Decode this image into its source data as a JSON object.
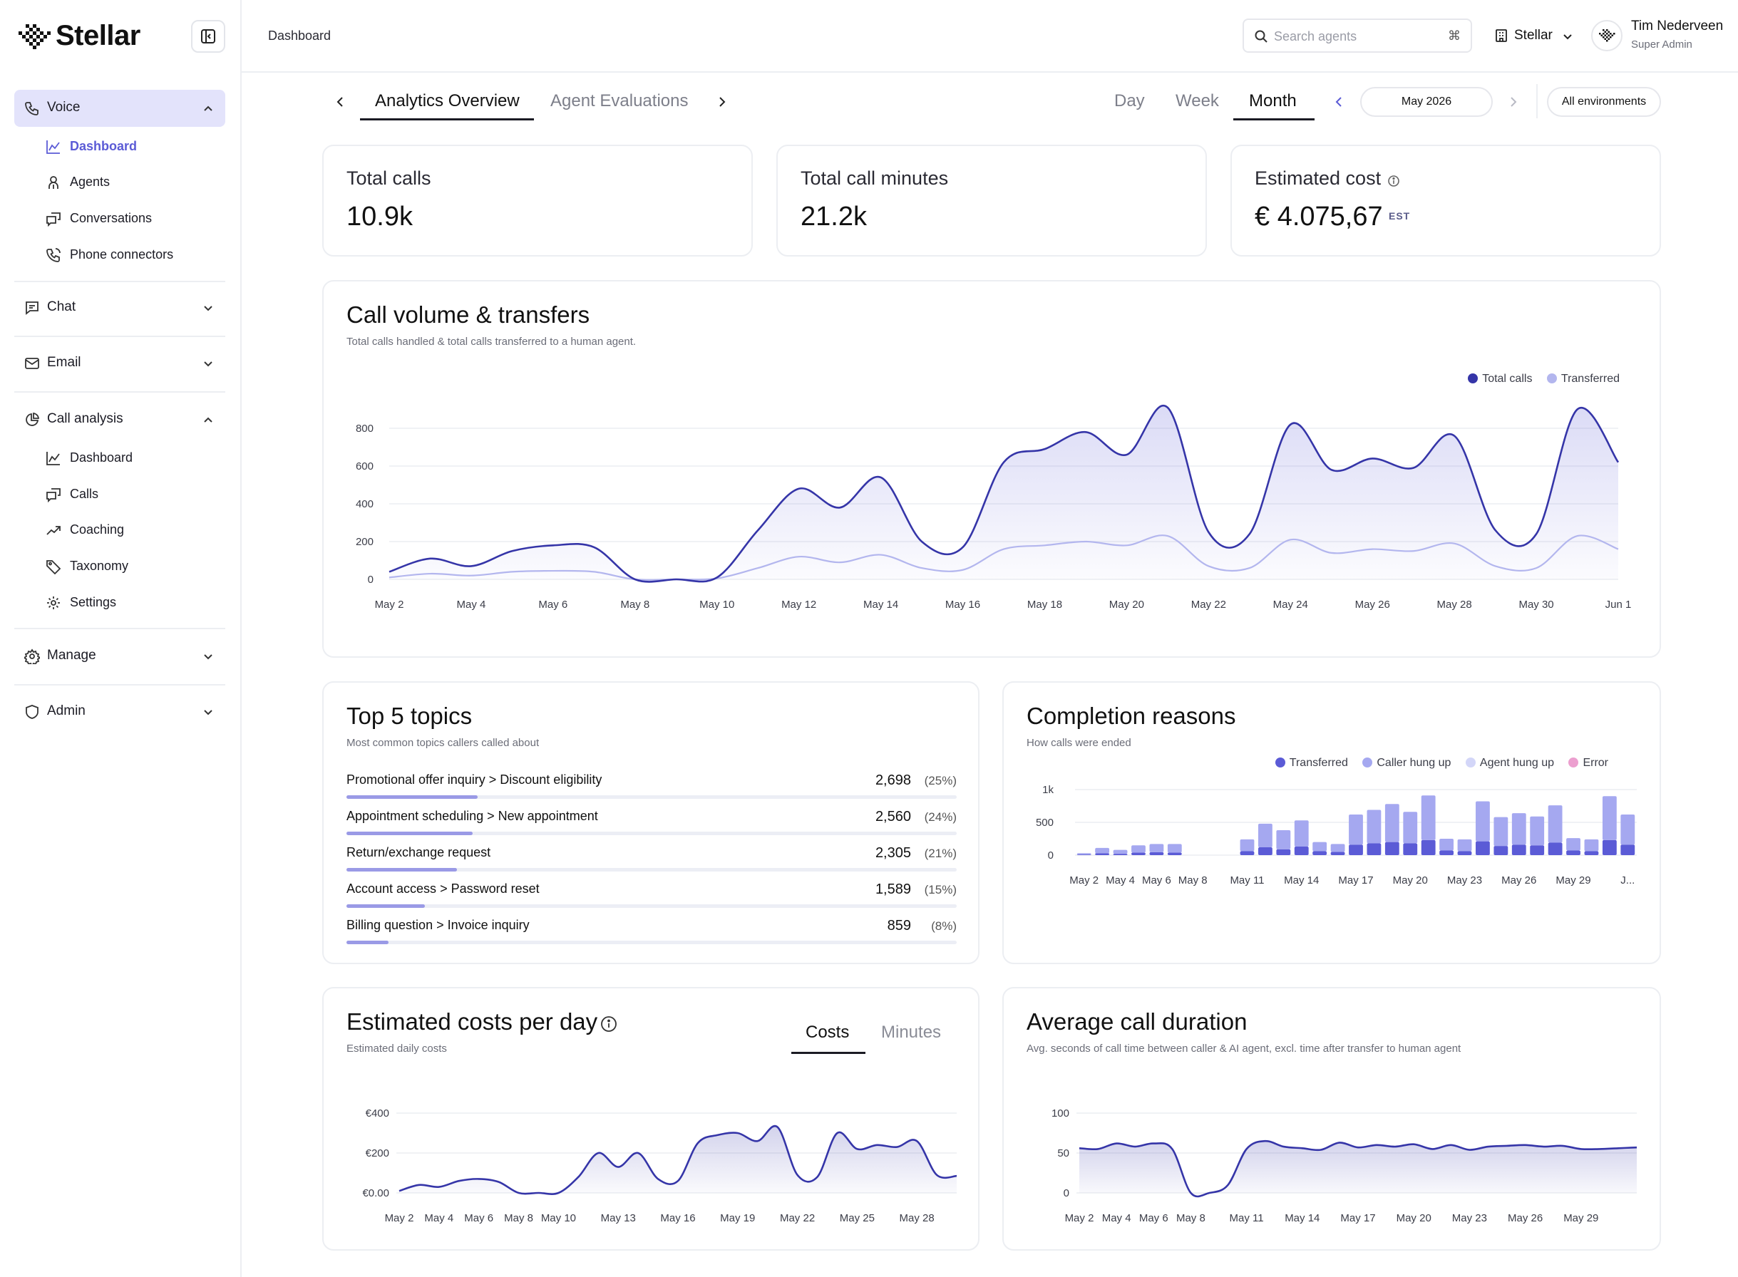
{
  "app": {
    "name": "Stellar"
  },
  "sidebar": {
    "sections": [
      {
        "label": "Voice",
        "expanded": true,
        "items": [
          "Dashboard",
          "Agents",
          "Conversations",
          "Phone connectors"
        ]
      },
      {
        "label": "Chat",
        "expanded": false
      },
      {
        "label": "Email",
        "expanded": false
      },
      {
        "label": "Call analysis",
        "expanded": true,
        "items": [
          "Dashboard",
          "Calls",
          "Coaching",
          "Taxonomy",
          "Settings"
        ]
      },
      {
        "label": "Manage",
        "expanded": false
      },
      {
        "label": "Admin",
        "expanded": false
      }
    ],
    "current_item": "Voice > Dashboard"
  },
  "header": {
    "breadcrumb": "Dashboard",
    "search_placeholder": "Search agents",
    "search_shortcut": "⌘",
    "org": "Stellar",
    "user": {
      "name": "Tim Nederveen",
      "role": "Super Admin"
    }
  },
  "tabs": {
    "items": [
      "Analytics Overview",
      "Agent Evaluations"
    ],
    "active": "Analytics Overview",
    "periods": [
      "Day",
      "Week",
      "Month"
    ],
    "active_period": "Month",
    "month": "May 2026",
    "environment": "All environments"
  },
  "kpis": [
    {
      "title": "Total calls",
      "value": "10.9k"
    },
    {
      "title": "Total call minutes",
      "value": "21.2k"
    },
    {
      "title": "Estimated cost",
      "value": "€ 4.075,67",
      "badge": "EST"
    }
  ],
  "colors": {
    "accent": "#5b5bd6",
    "primary_line": "#3535a8",
    "secondary_line": "#b3b6ee",
    "transferred": "#5b5bd6",
    "caller_hung_up": "#a5a8f0",
    "agent_hung_up": "#d3d6f8",
    "error": "#ec9fcf"
  },
  "call_volume": {
    "title": "Call volume & transfers",
    "subtitle": "Total calls handled & total calls transferred to a human agent.",
    "legend": [
      "Total calls",
      "Transferred"
    ]
  },
  "topics": {
    "title": "Top 5 topics",
    "subtitle": "Most common topics callers called about",
    "items": [
      {
        "label": "Promotional offer inquiry > Discount eligibility",
        "count": "2,698",
        "pct": "(25%)",
        "share": 0.25
      },
      {
        "label": "Appointment scheduling > New appointment",
        "count": "2,560",
        "pct": "(24%)",
        "share": 0.24
      },
      {
        "label": "Return/exchange request",
        "count": "2,305",
        "pct": "(21%)",
        "share": 0.21
      },
      {
        "label": "Account access > Password reset",
        "count": "1,589",
        "pct": "(15%)",
        "share": 0.15
      },
      {
        "label": "Billing question > Invoice inquiry",
        "count": "859",
        "pct": "(8%)",
        "share": 0.08
      }
    ]
  },
  "completion": {
    "title": "Completion reasons",
    "subtitle": "How calls were ended",
    "legend": [
      "Transferred",
      "Caller hung up",
      "Agent hung up",
      "Error"
    ]
  },
  "costs": {
    "title": "Estimated costs per day",
    "subtitle": "Estimated daily costs",
    "tabs": [
      "Costs",
      "Minutes"
    ],
    "active_tab": "Costs"
  },
  "duration": {
    "title": "Average call duration",
    "subtitle": "Avg. seconds of call time between caller & AI agent, excl. time after transfer to human agent"
  },
  "chart_data": [
    {
      "id": "call_volume",
      "type": "area",
      "x": [
        "May 2",
        "May 3",
        "May 4",
        "May 5",
        "May 6",
        "May 7",
        "May 8",
        "May 9",
        "May 10",
        "May 11",
        "May 12",
        "May 13",
        "May 14",
        "May 15",
        "May 16",
        "May 17",
        "May 18",
        "May 19",
        "May 20",
        "May 21",
        "May 22",
        "May 23",
        "May 24",
        "May 25",
        "May 26",
        "May 27",
        "May 28",
        "May 29",
        "May 30",
        "May 31",
        "Jun 1"
      ],
      "xticks": [
        "May 2",
        "May 4",
        "May 6",
        "May 8",
        "May 10",
        "May 12",
        "May 14",
        "May 16",
        "May 18",
        "May 20",
        "May 22",
        "May 24",
        "May 26",
        "May 28",
        "May 30",
        "Jun 1"
      ],
      "yticks": [
        0,
        200,
        400,
        600,
        800
      ],
      "ylim": [
        0,
        900
      ],
      "series": [
        {
          "name": "Total calls",
          "values": [
            40,
            110,
            70,
            150,
            180,
            170,
            0,
            0,
            10,
            260,
            480,
            380,
            540,
            200,
            170,
            620,
            690,
            780,
            660,
            910,
            250,
            240,
            820,
            580,
            640,
            590,
            760,
            260,
            240,
            900,
            620
          ]
        },
        {
          "name": "Transferred",
          "values": [
            10,
            30,
            20,
            40,
            45,
            40,
            0,
            0,
            5,
            60,
            120,
            90,
            130,
            60,
            50,
            160,
            180,
            200,
            180,
            230,
            70,
            60,
            210,
            140,
            160,
            150,
            190,
            70,
            60,
            230,
            160
          ]
        }
      ]
    },
    {
      "id": "completion_reasons",
      "type": "bar",
      "x": [
        "May 2",
        "May 3",
        "May 4",
        "May 5",
        "May 6",
        "May 7",
        "May 8",
        "May 9",
        "May 10",
        "May 11",
        "May 12",
        "May 13",
        "May 14",
        "May 15",
        "May 16",
        "May 17",
        "May 18",
        "May 19",
        "May 20",
        "May 21",
        "May 22",
        "May 23",
        "May 24",
        "May 25",
        "May 26",
        "May 27",
        "May 28",
        "May 29",
        "May 30",
        "May 31",
        "Jun 1"
      ],
      "xticks": [
        "May 2",
        "May 4",
        "May 6",
        "May 8",
        "May 11",
        "May 14",
        "May 17",
        "May 20",
        "May 23",
        "May 26",
        "May 29",
        "J..."
      ],
      "yticks": [
        "0",
        "500",
        "1k"
      ],
      "ylim": [
        0,
        1000
      ],
      "series": [
        {
          "name": "Transferred",
          "values": [
            10,
            30,
            20,
            40,
            45,
            40,
            0,
            0,
            0,
            60,
            120,
            90,
            130,
            60,
            50,
            160,
            180,
            200,
            180,
            230,
            70,
            60,
            210,
            140,
            160,
            150,
            190,
            70,
            60,
            230,
            160
          ]
        },
        {
          "name": "Caller hung up",
          "values": [
            20,
            80,
            60,
            110,
            125,
            130,
            0,
            0,
            0,
            180,
            360,
            290,
            400,
            140,
            120,
            460,
            510,
            580,
            480,
            680,
            180,
            180,
            610,
            440,
            480,
            440,
            570,
            190,
            180,
            670,
            460
          ]
        },
        {
          "name": "Agent hung up",
          "values": [
            0,
            0,
            0,
            0,
            0,
            0,
            0,
            0,
            0,
            0,
            0,
            0,
            0,
            0,
            0,
            0,
            0,
            0,
            0,
            0,
            0,
            0,
            0,
            0,
            0,
            0,
            0,
            0,
            0,
            0,
            0
          ]
        },
        {
          "name": "Error",
          "values": [
            0,
            0,
            0,
            0,
            0,
            0,
            0,
            0,
            0,
            0,
            0,
            0,
            0,
            0,
            0,
            0,
            0,
            0,
            0,
            0,
            0,
            0,
            0,
            0,
            0,
            0,
            0,
            0,
            0,
            0,
            0
          ]
        }
      ]
    },
    {
      "id": "estimated_costs",
      "type": "area",
      "x": [
        "May 2",
        "May 3",
        "May 4",
        "May 5",
        "May 6",
        "May 7",
        "May 8",
        "May 9",
        "May 10",
        "May 11",
        "May 12",
        "May 13",
        "May 14",
        "May 15",
        "May 16",
        "May 17",
        "May 18",
        "May 19",
        "May 20",
        "May 21",
        "May 22",
        "May 23",
        "May 24",
        "May 25",
        "May 26",
        "May 27",
        "May 28",
        "May 29",
        "May 30"
      ],
      "xticks": [
        "May 2",
        "May 4",
        "May 6",
        "May 8",
        "May 10",
        "May 13",
        "May 16",
        "May 19",
        "May 22",
        "May 25",
        "May 28"
      ],
      "yticks": [
        "€0.00",
        "€200",
        "€400"
      ],
      "ylim": [
        0,
        400
      ],
      "series": [
        {
          "name": "Costs",
          "values": [
            10,
            40,
            30,
            60,
            70,
            55,
            0,
            0,
            0,
            80,
            200,
            130,
            200,
            70,
            60,
            250,
            290,
            300,
            260,
            330,
            90,
            80,
            300,
            220,
            240,
            230,
            260,
            90,
            85
          ]
        }
      ]
    },
    {
      "id": "avg_duration",
      "type": "area",
      "x": [
        "May 2",
        "May 3",
        "May 4",
        "May 5",
        "May 6",
        "May 7",
        "May 8",
        "May 9",
        "May 10",
        "May 11",
        "May 12",
        "May 13",
        "May 14",
        "May 15",
        "May 16",
        "May 17",
        "May 18",
        "May 19",
        "May 20",
        "May 21",
        "May 22",
        "May 23",
        "May 24",
        "May 25",
        "May 26",
        "May 27",
        "May 28",
        "May 29",
        "May 30",
        "May 31",
        "Jun 1"
      ],
      "xticks": [
        "May 2",
        "May 4",
        "May 6",
        "May 8",
        "May 11",
        "May 14",
        "May 17",
        "May 20",
        "May 23",
        "May 26",
        "May 29"
      ],
      "yticks": [
        0,
        50,
        100
      ],
      "ylim": [
        0,
        100
      ],
      "series": [
        {
          "values": [
            56,
            55,
            62,
            58,
            62,
            55,
            0,
            0,
            10,
            55,
            65,
            58,
            56,
            54,
            63,
            57,
            60,
            58,
            61,
            55,
            60,
            54,
            58,
            59,
            60,
            58,
            59,
            55,
            55,
            56,
            57
          ]
        }
      ]
    }
  ]
}
